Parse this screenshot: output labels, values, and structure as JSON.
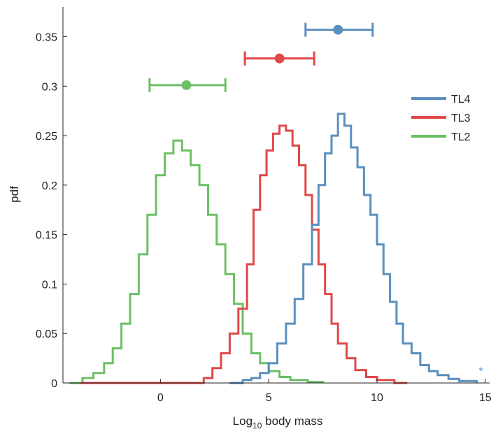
{
  "chart_data": {
    "type": "line",
    "style": "step-histogram",
    "xlabel_prefix": "Log",
    "xlabel_sub": "10",
    "xlabel_suffix": " body mass",
    "ylabel": "pdf",
    "xlim": [
      -4.5,
      15.2
    ],
    "ylim": [
      0,
      0.38
    ],
    "xticks": [
      0,
      5,
      10,
      15
    ],
    "yticks": [
      0,
      0.05,
      0.1,
      0.15,
      0.2,
      0.25,
      0.3,
      0.35
    ],
    "ytick_labels": [
      "0",
      "0.05",
      "0.1",
      "0.15",
      "0.2",
      "0.25",
      "0.3",
      "0.35"
    ],
    "grid": false,
    "legend_position": "right",
    "series": [
      {
        "name": "TL4",
        "color": "#5a8fbf",
        "points": [
          [
            3.2,
            0.0
          ],
          [
            3.8,
            0.003
          ],
          [
            4.2,
            0.005
          ],
          [
            4.6,
            0.01
          ],
          [
            5.0,
            0.02
          ],
          [
            5.4,
            0.04
          ],
          [
            5.8,
            0.06
          ],
          [
            6.2,
            0.085
          ],
          [
            6.6,
            0.12
          ],
          [
            7.0,
            0.16
          ],
          [
            7.3,
            0.2
          ],
          [
            7.6,
            0.232
          ],
          [
            7.9,
            0.25
          ],
          [
            8.2,
            0.272
          ],
          [
            8.5,
            0.26
          ],
          [
            8.8,
            0.238
          ],
          [
            9.1,
            0.218
          ],
          [
            9.4,
            0.19
          ],
          [
            9.7,
            0.17
          ],
          [
            10.0,
            0.14
          ],
          [
            10.3,
            0.11
          ],
          [
            10.6,
            0.082
          ],
          [
            10.9,
            0.06
          ],
          [
            11.2,
            0.04
          ],
          [
            11.6,
            0.03
          ],
          [
            12.0,
            0.018
          ],
          [
            12.4,
            0.012
          ],
          [
            12.8,
            0.008
          ],
          [
            13.3,
            0.004
          ],
          [
            13.8,
            0.002
          ],
          [
            14.6,
            0.0
          ]
        ],
        "summary": {
          "mean": 8.2,
          "lower": 6.7,
          "upper": 9.8,
          "y": 0.357
        }
      },
      {
        "name": "TL3",
        "color": "#e04848",
        "points": [
          [
            -3.7,
            0.0
          ],
          [
            1.5,
            0.0
          ],
          [
            2.0,
            0.005
          ],
          [
            2.4,
            0.015
          ],
          [
            2.8,
            0.03
          ],
          [
            3.2,
            0.05
          ],
          [
            3.6,
            0.075
          ],
          [
            4.0,
            0.12
          ],
          [
            4.3,
            0.175
          ],
          [
            4.6,
            0.21
          ],
          [
            4.9,
            0.235
          ],
          [
            5.2,
            0.252
          ],
          [
            5.5,
            0.26
          ],
          [
            5.8,
            0.255
          ],
          [
            6.1,
            0.24
          ],
          [
            6.4,
            0.22
          ],
          [
            6.7,
            0.19
          ],
          [
            7.0,
            0.155
          ],
          [
            7.3,
            0.12
          ],
          [
            7.6,
            0.09
          ],
          [
            7.9,
            0.06
          ],
          [
            8.2,
            0.04
          ],
          [
            8.6,
            0.025
          ],
          [
            9.0,
            0.013
          ],
          [
            9.5,
            0.006
          ],
          [
            10.0,
            0.003
          ],
          [
            10.8,
            0.0
          ],
          [
            11.4,
            0.0
          ]
        ],
        "summary": {
          "mean": 5.5,
          "lower": 3.9,
          "upper": 7.1,
          "y": 0.328
        }
      },
      {
        "name": "TL2",
        "color": "#6cbf64",
        "points": [
          [
            -4.2,
            0.0
          ],
          [
            -3.6,
            0.005
          ],
          [
            -3.1,
            0.01
          ],
          [
            -2.6,
            0.02
          ],
          [
            -2.2,
            0.035
          ],
          [
            -1.8,
            0.06
          ],
          [
            -1.4,
            0.09
          ],
          [
            -1.0,
            0.13
          ],
          [
            -0.6,
            0.17
          ],
          [
            -0.2,
            0.21
          ],
          [
            0.2,
            0.232
          ],
          [
            0.6,
            0.245
          ],
          [
            1.0,
            0.235
          ],
          [
            1.4,
            0.22
          ],
          [
            1.8,
            0.2
          ],
          [
            2.2,
            0.17
          ],
          [
            2.6,
            0.14
          ],
          [
            3.0,
            0.11
          ],
          [
            3.4,
            0.08
          ],
          [
            3.8,
            0.05
          ],
          [
            4.2,
            0.03
          ],
          [
            4.6,
            0.02
          ],
          [
            5.0,
            0.012
          ],
          [
            5.5,
            0.006
          ],
          [
            6.0,
            0.003
          ],
          [
            6.8,
            0.001
          ],
          [
            7.5,
            0.0
          ]
        ],
        "summary": {
          "mean": 1.2,
          "lower": -0.5,
          "upper": 3.0,
          "y": 0.301
        }
      }
    ],
    "annotation": {
      "text": "*",
      "x": 14.8,
      "y": 0.008,
      "color": "#5a8fbf"
    }
  }
}
